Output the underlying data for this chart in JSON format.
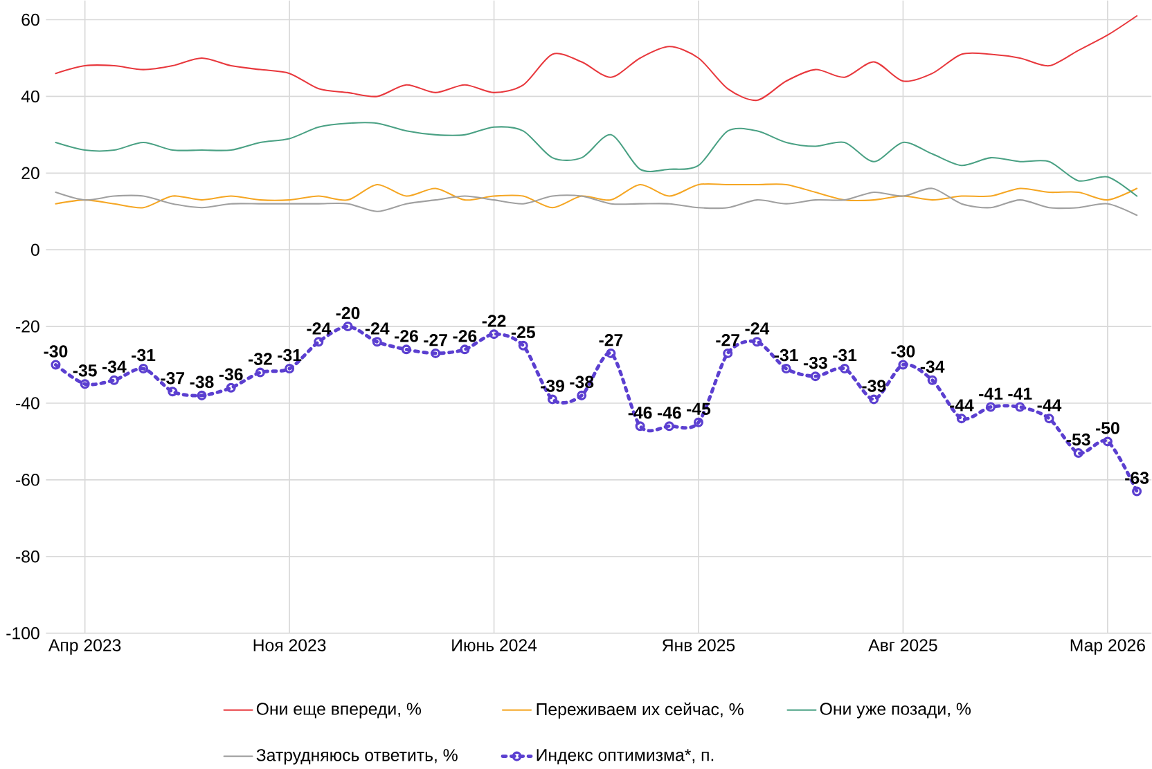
{
  "chart_data": {
    "type": "line",
    "x": [
      "2023-03",
      "2023-04",
      "2023-05",
      "2023-06",
      "2023-07",
      "2023-08",
      "2023-09",
      "2023-10",
      "2023-11",
      "2023-12",
      "2024-01",
      "2024-02",
      "2024-03",
      "2024-04",
      "2024-05",
      "2024-06",
      "2024-07",
      "2024-08",
      "2024-09",
      "2024-10",
      "2024-11",
      "2024-12",
      "2025-01",
      "2025-02",
      "2025-03",
      "2025-04",
      "2025-05",
      "2025-06",
      "2025-07",
      "2025-08",
      "2025-09",
      "2025-10",
      "2025-11",
      "2025-12",
      "2026-01",
      "2026-02",
      "2026-03",
      "2026-04"
    ],
    "series": [
      {
        "name": "Они еще впереди, %",
        "color": "#e8383d",
        "values": [
          46,
          48,
          48,
          47,
          48,
          50,
          48,
          47,
          46,
          42,
          41,
          40,
          43,
          41,
          43,
          41,
          43,
          51,
          49,
          45,
          50,
          53,
          50,
          42,
          39,
          44,
          47,
          45,
          49,
          44,
          46,
          51,
          51,
          50,
          48,
          52,
          56,
          61
        ]
      },
      {
        "name": "Переживаем их сейчас, %",
        "color": "#f5a623",
        "values": [
          12,
          13,
          12,
          11,
          14,
          13,
          14,
          13,
          13,
          14,
          13,
          17,
          14,
          16,
          13,
          14,
          14,
          11,
          14,
          13,
          17,
          14,
          17,
          17,
          17,
          17,
          15,
          13,
          13,
          14,
          13,
          14,
          14,
          16,
          15,
          15,
          13,
          16
        ]
      },
      {
        "name": "Они уже позади, %",
        "color": "#4aa184",
        "values": [
          28,
          26,
          26,
          28,
          26,
          26,
          26,
          28,
          29,
          32,
          33,
          33,
          31,
          30,
          30,
          32,
          31,
          24,
          24,
          30,
          21,
          21,
          22,
          31,
          31,
          28,
          27,
          28,
          23,
          28,
          25,
          22,
          24,
          23,
          23,
          18,
          19,
          14
        ]
      },
      {
        "name": "Затрудняюсь ответить, %",
        "color": "#a0a0a0",
        "values": [
          15,
          13,
          14,
          14,
          12,
          11,
          12,
          12,
          12,
          12,
          12,
          10,
          12,
          13,
          14,
          13,
          12,
          14,
          14,
          12,
          12,
          12,
          11,
          11,
          13,
          12,
          13,
          13,
          15,
          14,
          16,
          12,
          11,
          13,
          11,
          11,
          12,
          9
        ]
      },
      {
        "name": "Индекс оптимизма*, п.",
        "color": "#5b3fd0",
        "marker": "circle",
        "line_style": "dotted",
        "values": [
          -30,
          -35,
          -34,
          -31,
          -37,
          -38,
          -36,
          -32,
          -31,
          -24,
          -20,
          -24,
          -26,
          -27,
          -26,
          -22,
          -25,
          -39,
          -38,
          -27,
          -46,
          -46,
          -45,
          -27,
          -24,
          -31,
          -33,
          -31,
          -39,
          -30,
          -34,
          -44,
          -41,
          -41,
          -44,
          -53,
          -50,
          -63
        ],
        "value_labels": [
          "-30",
          "-35",
          "-34",
          "-31",
          "-37",
          "-38",
          "-36",
          "-32",
          "-31",
          "-24",
          "-20",
          "-24",
          "-26",
          "-27",
          "-26",
          "-22",
          "-25",
          "-39",
          "-38",
          "-27",
          "-46",
          "-46",
          "-45",
          "-27",
          "-24",
          "-31",
          "-33",
          "-31",
          "-39",
          "-30",
          "-34",
          "-44",
          "-41",
          "-41",
          "-44",
          "-53",
          "-50",
          "-63"
        ]
      }
    ],
    "xlim": [
      "2023-02-21",
      "2026-04-16"
    ],
    "xticks": [
      {
        "value": "2023-04",
        "label": "Апр 2023"
      },
      {
        "value": "2023-11",
        "label": "Ноя 2023"
      },
      {
        "value": "2024-06",
        "label": "Июнь 2024"
      },
      {
        "value": "2025-01",
        "label": "Янв 2025"
      },
      {
        "value": "2025-08",
        "label": "Авг 2025"
      },
      {
        "value": "2026-03",
        "label": "Мар 2026"
      }
    ],
    "ylim": [
      -100,
      65
    ],
    "yticks": [
      -100,
      -80,
      -60,
      -40,
      -20,
      0,
      20,
      40,
      60
    ],
    "grid": true,
    "legend": "bottom"
  }
}
